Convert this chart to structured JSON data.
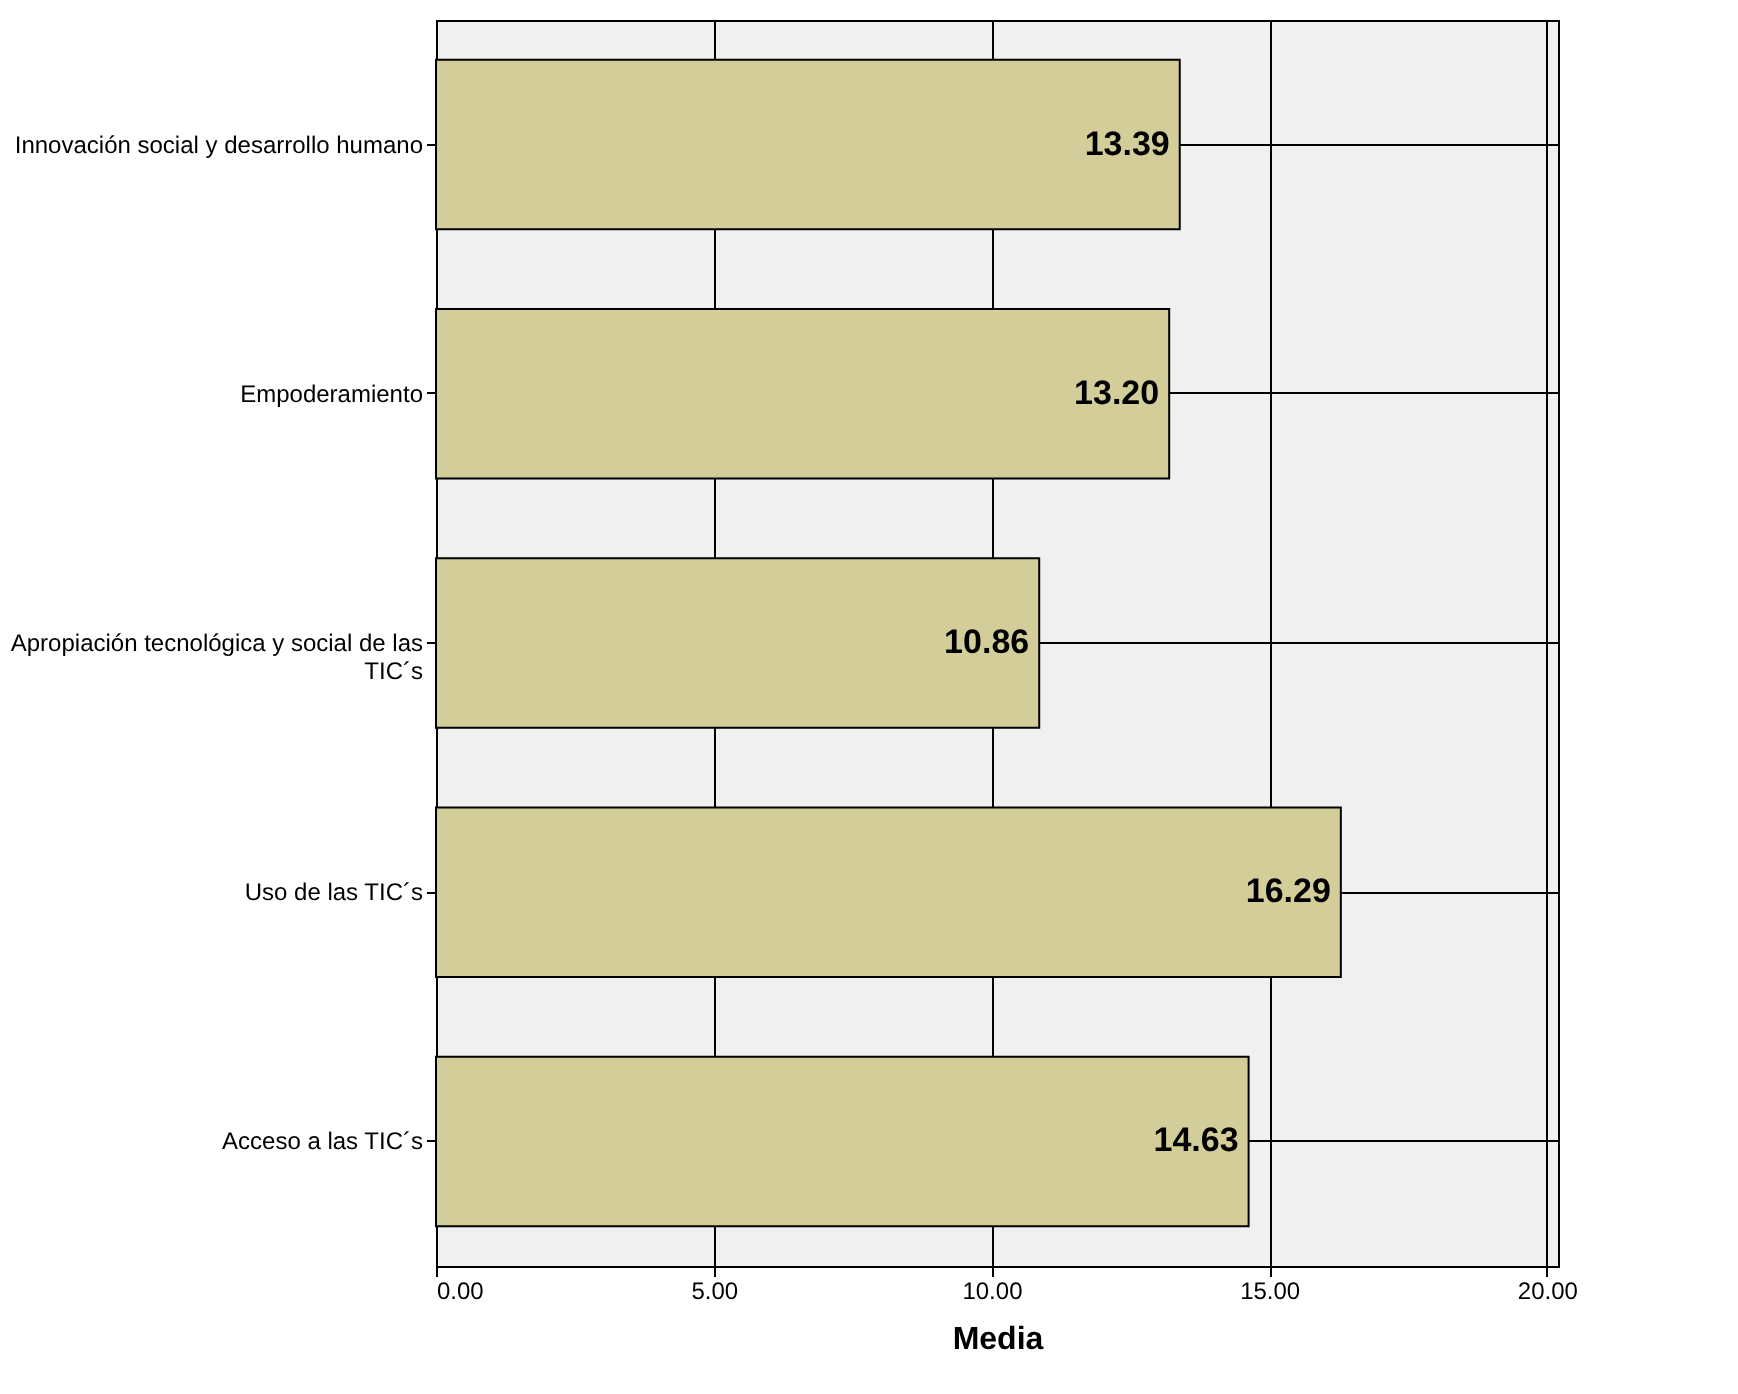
{
  "chart_data": {
    "type": "bar",
    "orientation": "horizontal",
    "xlabel": "Media",
    "categories": [
      "Innovación social y desarrollo humano",
      "Empoderamiento",
      "Apropiación tecnológica y social de las TIC´s",
      "Uso de las TIC´s",
      "Acceso a las TIC´s"
    ],
    "values": [
      13.39,
      13.2,
      10.86,
      16.29,
      14.63
    ],
    "value_labels": [
      "13.39",
      "13.20",
      "10.86",
      "16.29",
      "14.63"
    ],
    "color": "#d3ce99",
    "xlim": [
      0,
      20.2
    ],
    "xticks": [
      {
        "value": 0,
        "label": "0.00"
      },
      {
        "value": 5,
        "label": "5.00"
      },
      {
        "value": 10,
        "label": "10.00"
      },
      {
        "value": 15,
        "label": "15.00"
      },
      {
        "value": 20,
        "label": "20.00"
      }
    ],
    "grid": true
  }
}
